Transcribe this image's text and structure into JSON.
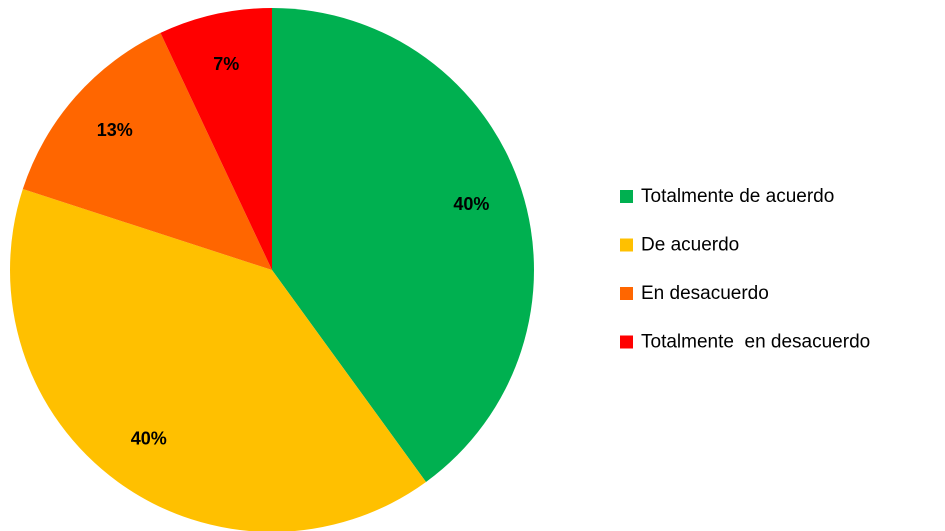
{
  "chart_data": {
    "type": "pie",
    "categories": [
      "Totalmente de acuerdo",
      "De acuerdo",
      "En desacuerdo",
      "Totalmente  en desacuerdo"
    ],
    "values": [
      40,
      40,
      13,
      7
    ],
    "value_labels": [
      "40%",
      "40%",
      "13%",
      "7%"
    ],
    "colors": [
      "#00b050",
      "#ffc000",
      "#ff6600",
      "#ff0000"
    ],
    "legend": "right"
  }
}
